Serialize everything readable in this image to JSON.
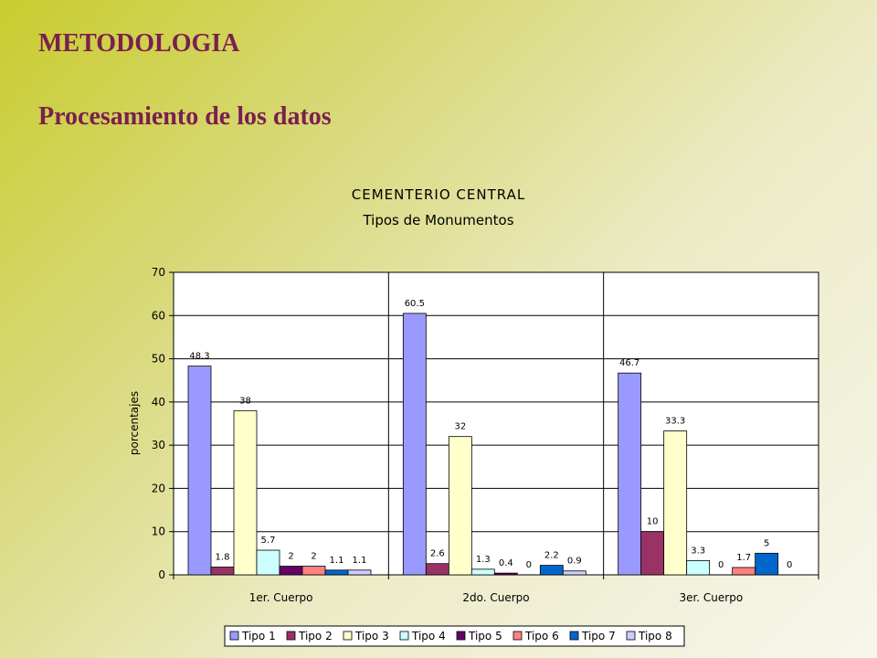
{
  "slide": {
    "heading": "METODOLOGIA",
    "subheading": "Procesamiento de los datos"
  },
  "chart_data": {
    "type": "bar",
    "title": "CEMENTERIO CENTRAL",
    "subtitle": "Tipos de Monumentos",
    "ylabel": "porcentajes",
    "xlabel": "",
    "ylim": [
      0,
      70
    ],
    "yticks": [
      0,
      10,
      20,
      30,
      40,
      50,
      60,
      70
    ],
    "grid": true,
    "legend_position": "bottom",
    "categories": [
      "1er. Cuerpo",
      "2do. Cuerpo",
      "3er. Cuerpo"
    ],
    "series": [
      {
        "name": "Tipo 1",
        "color": "#9999ff",
        "values": [
          48.3,
          60.5,
          46.7
        ]
      },
      {
        "name": "Tipo 2",
        "color": "#993366",
        "values": [
          1.8,
          2.6,
          10
        ]
      },
      {
        "name": "Tipo 3",
        "color": "#ffffcc",
        "values": [
          38,
          32,
          33.3
        ]
      },
      {
        "name": "Tipo 4",
        "color": "#ccffff",
        "values": [
          5.7,
          1.3,
          3.3
        ]
      },
      {
        "name": "Tipo 5",
        "color": "#660066",
        "values": [
          2,
          0.4,
          0
        ]
      },
      {
        "name": "Tipo 6",
        "color": "#ff8080",
        "values": [
          2,
          0,
          1.7
        ]
      },
      {
        "name": "Tipo 7",
        "color": "#0066cc",
        "values": [
          1.1,
          2.2,
          5
        ]
      },
      {
        "name": "Tipo 8",
        "color": "#ccccff",
        "values": [
          1.1,
          0.9,
          0
        ]
      }
    ]
  }
}
